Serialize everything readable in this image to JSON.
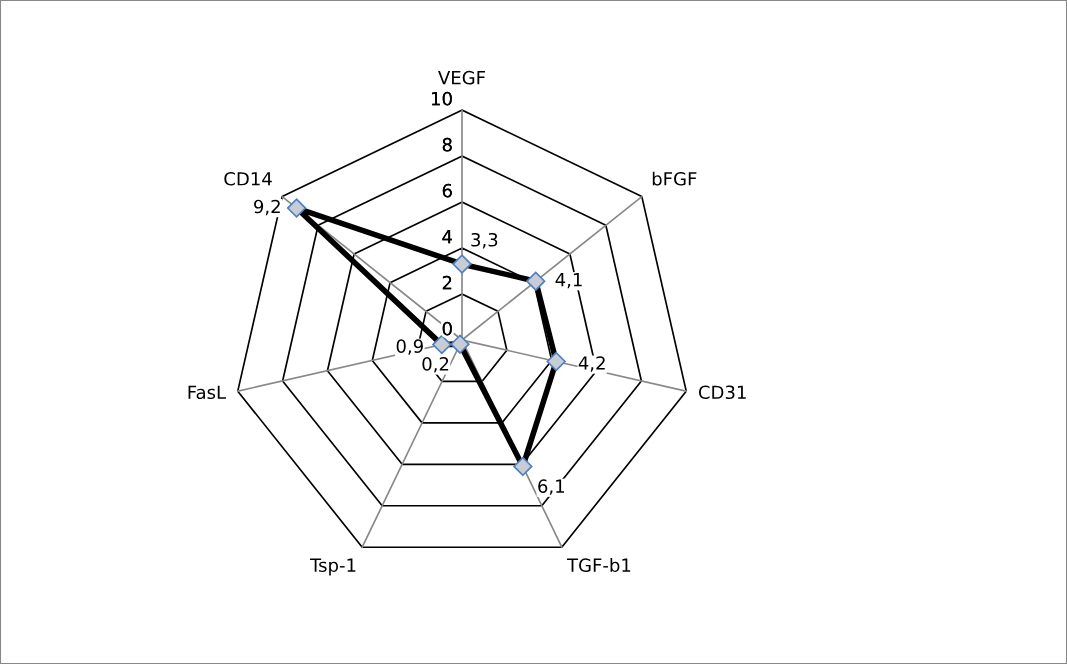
{
  "chart_data": {
    "type": "radar",
    "categories": [
      "VEGF",
      "bFGF",
      "CD31",
      "TGF-b1",
      "Tsp-1",
      "FasL",
      "CD14"
    ],
    "series": [
      {
        "color": "#000000",
        "values": [
          3.3,
          4.1,
          4.2,
          6.1,
          0.2,
          0.9,
          9.2
        ],
        "value_labels": [
          "3,3",
          "4,1",
          "4,2",
          "6,1",
          "0,2",
          "0,9",
          "9,2"
        ]
      }
    ],
    "ylim": [
      0,
      10
    ],
    "yticks": [
      0,
      2,
      4,
      6,
      8,
      10
    ],
    "grid": true,
    "marker": "diamond",
    "line_style": "solid"
  }
}
